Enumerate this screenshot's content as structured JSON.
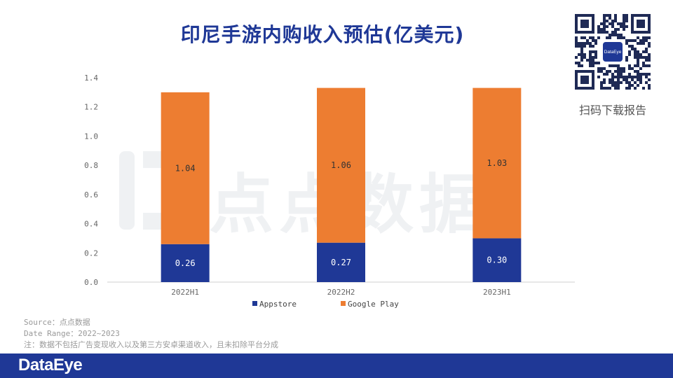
{
  "title": "印尼手游内购收入预估(亿美元)",
  "qr": {
    "caption": "扫码下载报告",
    "logo_text": "DataEye"
  },
  "watermark": {
    "text": "点点数据"
  },
  "chart_data": {
    "type": "bar",
    "stacked": true,
    "categories": [
      "2022H1",
      "2022H2",
      "2023H1"
    ],
    "series": [
      {
        "name": "Appstore",
        "values": [
          0.26,
          0.27,
          0.3
        ],
        "labels": [
          "0.26",
          "0.27",
          "0.30"
        ],
        "color": "#1f3896"
      },
      {
        "name": "Google Play",
        "values": [
          1.04,
          1.06,
          1.03
        ],
        "labels": [
          "1.04",
          "1.06",
          "1.03"
        ],
        "color": "#ed7d31"
      }
    ],
    "ylim": [
      0,
      1.4
    ],
    "yticks": [
      "0.0",
      "0.2",
      "0.4",
      "0.6",
      "0.8",
      "1.0",
      "1.2",
      "1.4"
    ],
    "legend_position": "bottom",
    "grid": false
  },
  "notes": [
    "Source：点点数据",
    "Date Range：2022~2023",
    "注：数据不包括广告变现收入以及第三方安卓渠道收入，且未扣除平台分成"
  ],
  "footer": {
    "brand": "DataEye",
    "color": "#1f3896"
  }
}
